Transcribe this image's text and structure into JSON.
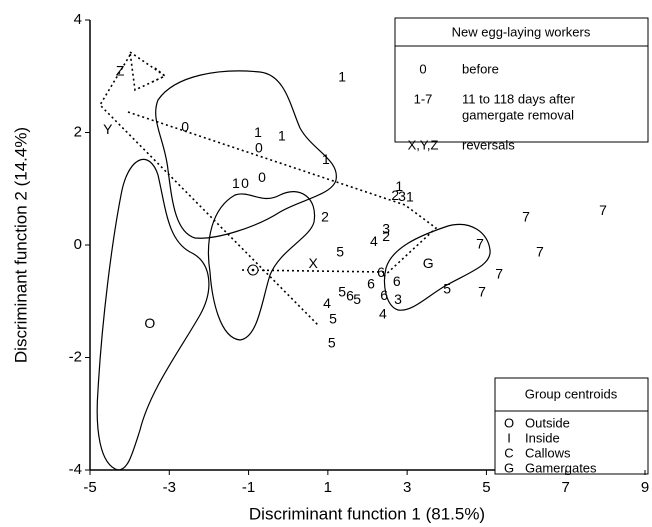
{
  "chart_data": {
    "type": "scatter",
    "x_label": "Discriminant function 1 (81.5%)",
    "y_label": "Discriminant function 2 (14.4%)",
    "xlim": [
      -5,
      9
    ],
    "xticks": [
      -5,
      -3,
      -1,
      1,
      3,
      5,
      7,
      9
    ],
    "ylim": [
      -4,
      4
    ],
    "yticks": [
      -4,
      -2,
      0,
      2,
      4
    ],
    "points": {
      "labels": [
        "1",
        "0",
        "1",
        "0",
        "1",
        "1",
        "1",
        "0",
        "0",
        "2",
        "1",
        "2",
        "3",
        "1",
        "3",
        "2",
        "4",
        "5",
        "6",
        "6",
        "6",
        "5",
        "6",
        "5",
        "4",
        "6",
        "3",
        "4",
        "5",
        "5",
        "5",
        "7",
        "7",
        "7",
        "7",
        "7",
        "7"
      ],
      "x": [
        1.36,
        -2.6,
        -0.76,
        -0.74,
        -0.16,
        0.95,
        -1.32,
        -1.09,
        -0.66,
        0.93,
        2.8,
        2.7,
        2.87,
        3.07,
        2.47,
        2.47,
        2.16,
        1.31,
        2.34,
        2.74,
        2.09,
        1.36,
        1.56,
        1.74,
        0.98,
        2.42,
        2.77,
        2.39,
        1.13,
        1.1,
        4.01,
        4.84,
        6.0,
        7.94,
        6.35,
        5.32,
        4.89
      ],
      "y": [
        2.97,
        2.08,
        1.99,
        1.71,
        1.92,
        1.51,
        1.08,
        1.08,
        1.19,
        0.48,
        1.03,
        0.87,
        0.85,
        0.84,
        0.27,
        0.14,
        0.05,
        -0.14,
        -0.5,
        -0.66,
        -0.71,
        -0.85,
        -0.92,
        -0.98,
        -1.05,
        -0.91,
        -0.98,
        -1.24,
        -1.33,
        -1.76,
        -0.8,
        0.0,
        0.48,
        0.6,
        -0.14,
        -0.53,
        -0.85
      ]
    },
    "centroids": {
      "labels": [
        "O",
        "G"
      ],
      "x": [
        -3.49,
        3.53
      ],
      "y": [
        -1.41,
        -0.34
      ]
    },
    "annotations": [
      {
        "text": "Z",
        "x": -4.24,
        "y": 3.08
      },
      {
        "text": "Y",
        "x": -4.55,
        "y": 2.04
      },
      {
        "text": "X",
        "x": 0.63,
        "y": -0.34
      }
    ],
    "legend_workers": {
      "title": "New egg-laying workers",
      "rows": [
        {
          "symbol": "0",
          "text": [
            "before"
          ]
        },
        {
          "symbol": "1-7",
          "text": [
            "11 to 118 days after",
            "gamergate removal"
          ]
        },
        {
          "symbol": "X,Y,Z",
          "text": [
            "reversals"
          ]
        }
      ]
    },
    "legend_centroids": {
      "title": "Group centroids",
      "rows": [
        {
          "symbol": "O",
          "text": "Outside"
        },
        {
          "symbol": "I",
          "text": "Inside"
        },
        {
          "symbol": "C",
          "text": "Callows"
        },
        {
          "symbol": "G",
          "text": "Gamergates"
        }
      ]
    }
  }
}
